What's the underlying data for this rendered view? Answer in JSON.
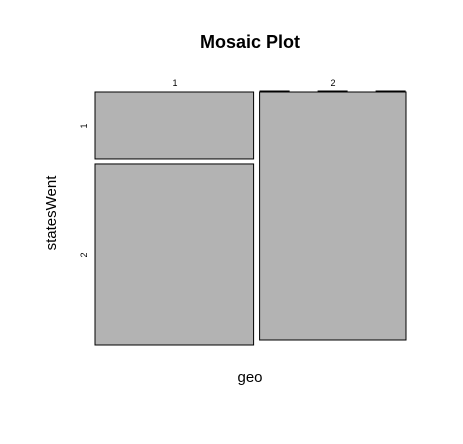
{
  "chart_data": {
    "type": "mosaic",
    "title": "Mosaic Plot",
    "xlabel": "geo",
    "ylabel": "statesWent",
    "x_categories": [
      "1",
      "2"
    ],
    "y_categories": [
      "1",
      "2"
    ],
    "x_proportions": [
      0.52,
      0.48
    ],
    "y_proportions_within_x": [
      {
        "x": "1",
        "values": [
          0.27,
          0.73
        ]
      },
      {
        "x": "2",
        "values": [
          0.0,
          1.0
        ]
      }
    ],
    "fill_color": "#b3b3b3",
    "empty_cells_shown_as_dashed_line": true
  }
}
